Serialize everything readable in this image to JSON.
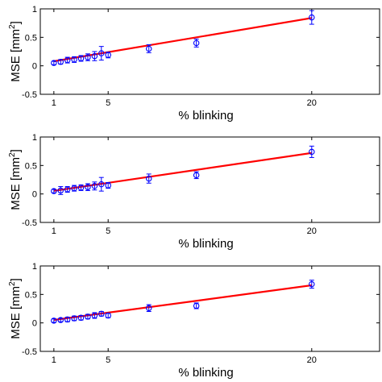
{
  "chart_data": [
    {
      "type": "scatter",
      "xlabel": "% blinking",
      "ylabel_main": "MSE [mm",
      "ylabel_sup": "2",
      "ylabel_close": "]",
      "xlim": [
        0,
        25
      ],
      "ylim": [
        -0.5,
        1
      ],
      "xticks": [
        1,
        5,
        20
      ],
      "xtick_labels": [
        "1",
        "5",
        "20"
      ],
      "yticks": [
        -0.5,
        0,
        0.5,
        1
      ],
      "ytick_labels": [
        "-0.5",
        "0",
        "0.5",
        "1"
      ],
      "grid": false,
      "points": {
        "x": [
          1,
          1.5,
          2,
          2.5,
          3,
          3.5,
          4,
          4.5,
          5,
          8,
          11.5,
          20
        ],
        "y": [
          0.05,
          0.07,
          0.1,
          0.11,
          0.13,
          0.15,
          0.17,
          0.22,
          0.19,
          0.3,
          0.4,
          0.85
        ],
        "err": [
          0.03,
          0.04,
          0.05,
          0.05,
          0.05,
          0.06,
          0.08,
          0.12,
          0.05,
          0.07,
          0.07,
          0.12
        ],
        "color": "#0000ff"
      },
      "fit": {
        "slope": 0.04,
        "intercept": 0.04,
        "x_range": [
          1,
          20
        ],
        "color": "#ff0000"
      }
    },
    {
      "type": "scatter",
      "xlabel": "% blinking",
      "ylabel_main": "MSE [mm",
      "ylabel_sup": "2",
      "ylabel_close": "]",
      "xlim": [
        0,
        25
      ],
      "ylim": [
        -0.5,
        1
      ],
      "xticks": [
        1,
        5,
        20
      ],
      "xtick_labels": [
        "1",
        "5",
        "20"
      ],
      "yticks": [
        -0.5,
        0,
        0.5,
        1
      ],
      "ytick_labels": [
        "-0.5",
        "0",
        "0.5",
        "1"
      ],
      "grid": false,
      "points": {
        "x": [
          1,
          1.5,
          2,
          2.5,
          3,
          3.5,
          4,
          4.5,
          5,
          8,
          11.5,
          20
        ],
        "y": [
          0.05,
          0.06,
          0.08,
          0.1,
          0.11,
          0.12,
          0.14,
          0.17,
          0.15,
          0.27,
          0.33,
          0.74
        ],
        "err": [
          0.03,
          0.07,
          0.05,
          0.05,
          0.05,
          0.06,
          0.07,
          0.12,
          0.05,
          0.08,
          0.06,
          0.1
        ],
        "color": "#0000ff"
      },
      "fit": {
        "slope": 0.035,
        "intercept": 0.02,
        "x_range": [
          1,
          20
        ],
        "color": "#ff0000"
      }
    },
    {
      "type": "scatter",
      "xlabel": "% blinking",
      "ylabel_main": "MSE [mm",
      "ylabel_sup": "2",
      "ylabel_close": "]",
      "xlim": [
        0,
        25
      ],
      "ylim": [
        -0.5,
        1
      ],
      "xticks": [
        1,
        5,
        20
      ],
      "xtick_labels": [
        "1",
        "5",
        "20"
      ],
      "yticks": [
        -0.5,
        0,
        0.5,
        1
      ],
      "ytick_labels": [
        "-0.5",
        "0",
        "0.5",
        "1"
      ],
      "grid": false,
      "points": {
        "x": [
          1,
          1.5,
          2,
          2.5,
          3,
          3.5,
          4,
          4.5,
          5,
          8,
          11.5,
          20
        ],
        "y": [
          0.04,
          0.05,
          0.06,
          0.08,
          0.09,
          0.11,
          0.13,
          0.16,
          0.13,
          0.26,
          0.3,
          0.68
        ],
        "err": [
          0.03,
          0.03,
          0.04,
          0.04,
          0.04,
          0.04,
          0.05,
          0.04,
          0.04,
          0.06,
          0.05,
          0.07
        ],
        "color": "#0000ff"
      },
      "fit": {
        "slope": 0.032,
        "intercept": 0.02,
        "x_range": [
          1,
          20
        ],
        "color": "#ff0000"
      }
    }
  ]
}
